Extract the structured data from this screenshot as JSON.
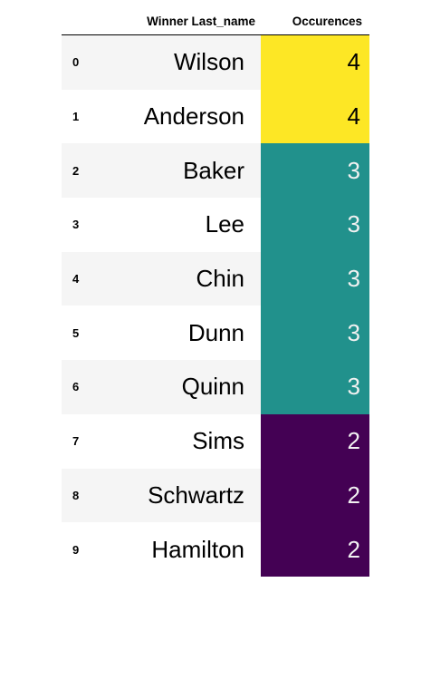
{
  "table": {
    "columns": {
      "index": "",
      "name": "Winner Last_name",
      "occurrences": "Occurences"
    },
    "rows": [
      {
        "index": "0",
        "name": "Wilson",
        "occurrences": "4"
      },
      {
        "index": "1",
        "name": "Anderson",
        "occurrences": "4"
      },
      {
        "index": "2",
        "name": "Baker",
        "occurrences": "3"
      },
      {
        "index": "3",
        "name": "Lee",
        "occurrences": "3"
      },
      {
        "index": "4",
        "name": "Chin",
        "occurrences": "3"
      },
      {
        "index": "5",
        "name": "Dunn",
        "occurrences": "3"
      },
      {
        "index": "6",
        "name": "Quinn",
        "occurrences": "3"
      },
      {
        "index": "7",
        "name": "Sims",
        "occurrences": "2"
      },
      {
        "index": "8",
        "name": "Schwartz",
        "occurrences": "2"
      },
      {
        "index": "9",
        "name": "Hamilton",
        "occurrences": "2"
      }
    ]
  },
  "colors": {
    "occ_4": "#fde725",
    "occ_3": "#21918c",
    "occ_2": "#440154",
    "stripe": "#f5f5f5"
  }
}
